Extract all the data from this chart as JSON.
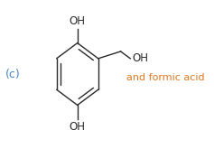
{
  "label_c": "(c)",
  "label_c_color": "#4a86c8",
  "label_c_fontsize": 9,
  "and_formic_text": "and formic acid",
  "and_formic_color": "#e07820",
  "and_formic_fontsize": 8,
  "oh_text": "OH",
  "oh_fontsize": 8.5,
  "line_color": "#2a2a2a",
  "background": "#ffffff",
  "lw": 1.0
}
